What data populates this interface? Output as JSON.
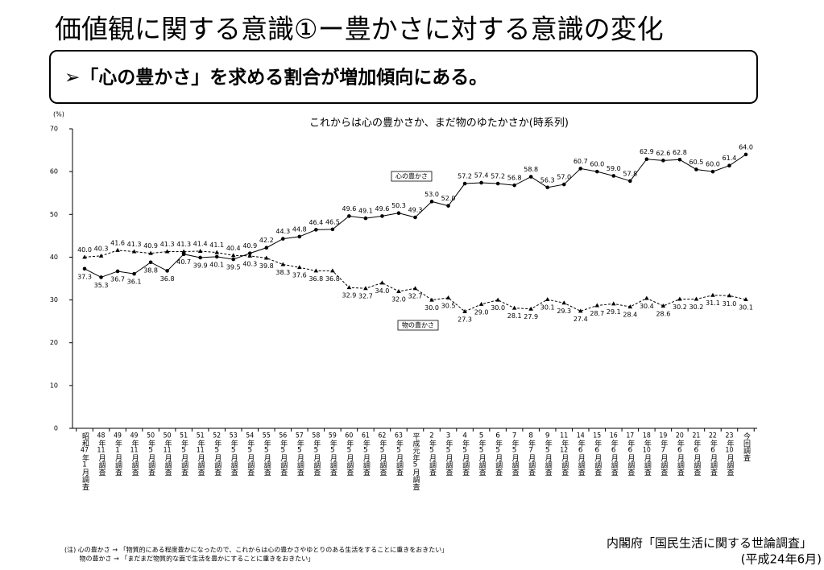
{
  "header": {
    "title": "価値観に関する意識①ー豊かさに対する意識の変化",
    "subtitle": "➢「心の豊かさ」を求める割合が増加傾向にある。"
  },
  "chart_data": {
    "type": "line",
    "title": "これからは心の豊かさか、まだ物のゆたかさか(時系列)",
    "y_label": "(%)",
    "categories": [
      "昭和47年1月調査",
      "48年11月調査",
      "49年1月調査",
      "49年11月調査",
      "50年5月調査",
      "50年11月調査",
      "51年5月調査",
      "51年11月調査",
      "52年5月調査",
      "53年5月調査",
      "54年5月調査",
      "55年5月調査",
      "56年5月調査",
      "57年5月調査",
      "58年5月調査",
      "59年5月調査",
      "60年5月調査",
      "61年5月調査",
      "62年5月調査",
      "63年5月調査",
      "平成元年5月調査",
      "2年5月調査",
      "3年5月調査",
      "4年5月調査",
      "5年5月調査",
      "6年5月調査",
      "7年5月調査",
      "8年7月調査",
      "9年5月調査",
      "11年12月調査",
      "14年6月調査",
      "15年6月調査",
      "16年6月調査",
      "17年6月調査",
      "18年10月調査",
      "19年7月調査",
      "20年6月調査",
      "21年6月調査",
      "22年6月調査",
      "23年10月調査",
      "今回調査"
    ],
    "series": [
      {
        "name": "心の豊かさ",
        "color": "#000000",
        "dashed": false,
        "marker": "circle",
        "values": [
          37.3,
          35.3,
          36.7,
          36.1,
          38.8,
          36.8,
          40.7,
          39.9,
          40.1,
          39.5,
          40.9,
          42.2,
          44.3,
          44.8,
          46.4,
          46.5,
          49.6,
          49.1,
          49.6,
          50.3,
          49.3,
          53.0,
          52.0,
          57.2,
          57.4,
          57.2,
          56.8,
          58.8,
          56.3,
          57.0,
          60.7,
          60.0,
          59.0,
          57.8,
          62.9,
          62.6,
          62.8,
          60.5,
          60.0,
          61.4,
          64.0
        ],
        "value_labels": [
          "37.3",
          "35.3",
          "36.7",
          "36.1",
          "38.8",
          "36.8",
          "40.7",
          "39.9",
          "40.1",
          "39.5",
          "40.9",
          "42.2",
          "44.3",
          "44.8",
          "46.4",
          "46.5",
          "49.6",
          "49.1",
          "49.6",
          "50.3",
          "49.3",
          "53.0",
          "52.0",
          "57.2",
          "57.4",
          "57.2",
          "56.8",
          "58.8",
          "56.3",
          "57.0",
          "60.7",
          "60.0",
          "59.0",
          "57.8",
          "62.9",
          "62.6",
          "62.8",
          "60.5",
          "60.0",
          "61.4",
          "64.0"
        ]
      },
      {
        "name": "物の豊かさ",
        "color": "#000000",
        "dashed": true,
        "marker": "triangle",
        "values": [
          40.0,
          40.3,
          41.6,
          41.3,
          40.9,
          41.3,
          41.3,
          41.4,
          41.1,
          40.4,
          40.3,
          39.8,
          38.3,
          37.6,
          36.8,
          36.8,
          32.9,
          32.7,
          34.0,
          32.0,
          32.7,
          30.0,
          30.5,
          27.3,
          29.0,
          30.0,
          28.1,
          27.9,
          30.1,
          29.3,
          27.4,
          28.7,
          29.1,
          28.4,
          30.4,
          28.6,
          30.2,
          30.2,
          31.1,
          31.0,
          30.1
        ],
        "value_labels": [
          "40.0",
          "40.3",
          "41.6",
          "41.3",
          "40.9",
          "41.3",
          "41.3",
          "41.4",
          "41.1",
          "40.4",
          "40.3",
          "39.8",
          "38.3",
          "37.6",
          "36.8",
          "36.8",
          "32.9",
          "32.7",
          "34.0",
          "32.0",
          "32.7",
          "30.0",
          "30.5",
          "27.3",
          "29.0",
          "30.0",
          "28.1",
          "27.9",
          "30.1",
          "29.3",
          "27.4",
          "28.7",
          "29.1",
          "28.4",
          "30.4",
          "28.6",
          "30.2",
          "30.2",
          "31.1",
          "31.0",
          "30.1"
        ]
      }
    ],
    "ylim": [
      0,
      70
    ],
    "yticks": [
      0,
      10,
      20,
      30,
      40,
      50,
      60,
      70
    ]
  },
  "notes": [
    "(注) 心の豊かさ → 「物質的にある程度豊かになったので、これからは心の豊かさやゆとりのある生活をすることに重きをおきたい」",
    "　　 物の豊かさ → 「まだまだ物質的な面で生活を豊かにすることに重きをおきたい」"
  ],
  "source": "内閣府「国民生活に関する世論調査」",
  "source_date": "(平成24年6月)"
}
